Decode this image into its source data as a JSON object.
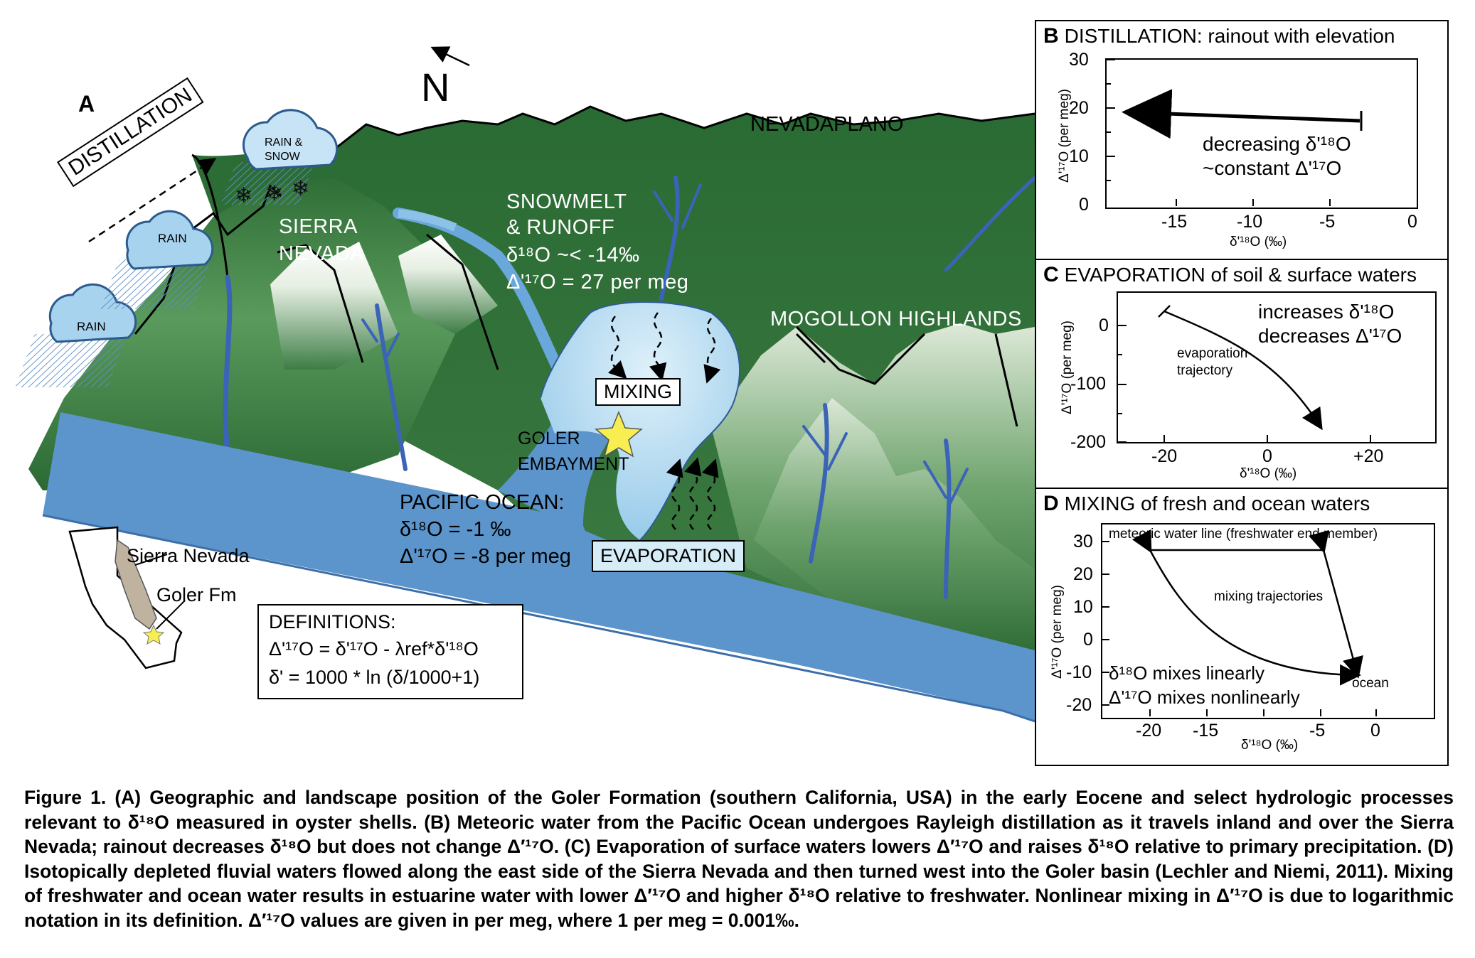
{
  "panel_a": {
    "letter": "A",
    "north": "N",
    "distillation": "DISTILLATION",
    "cloud_rain_1": "RAIN",
    "cloud_rain_2": "RAIN",
    "cloud_rain_snow_1": "RAIN &",
    "cloud_rain_snow_2": "SNOW",
    "nevadaplano": "NEVADAPLANO",
    "sierra_1": "SIERRA",
    "sierra_2": "NEVADA",
    "snowmelt_1": "SNOWMELT",
    "snowmelt_2": "& RUNOFF",
    "snowmelt_3": "δ¹⁸O ~< -14‰",
    "snowmelt_4": "Δ'¹⁷O = 27 per meg",
    "mogollon": "MOGOLLON HIGHLANDS",
    "mixing": "MIXING",
    "goler_1": "GOLER",
    "goler_2": "EMBAYMENT",
    "pacific_1": "PACIFIC OCEAN:",
    "pacific_2": "δ¹⁸O = -1 ‰",
    "pacific_3": "Δ'¹⁷O = -8 per meg",
    "evaporation": "EVAPORATION",
    "inset_sierra": "Sierra Nevada",
    "inset_goler": "Goler Fm",
    "defs_title": "DEFINITIONS:",
    "defs_1": "Δ'¹⁷O = δ'¹⁷O - λref*δ'¹⁸O",
    "defs_2": "δ' = 1000 * ln (δ/1000+1)"
  },
  "panel_b": {
    "letter": "B",
    "title": "DISTILLATION: rainout with elevation",
    "ylabel": "Δ'¹⁷O (per meg)",
    "xlabel": "δ'¹⁸O (‰)",
    "yticks": [
      "30",
      "20",
      "10",
      "0"
    ],
    "xticks": [
      "-15",
      "-10",
      "-5",
      "0"
    ],
    "note_1": "decreasing δ'¹⁸O",
    "note_2": "~constant Δ'¹⁷O"
  },
  "panel_c": {
    "letter": "C",
    "title": "EVAPORATION of soil & surface waters",
    "ylabel": "Δ'¹⁷O (per meg)",
    "xlabel": "δ'¹⁸O (‰)",
    "yticks": [
      "0",
      "-100",
      "-200"
    ],
    "xticks": [
      "-20",
      "0",
      "+20"
    ],
    "note_1": "increases δ'¹⁸O",
    "note_2": "decreases Δ'¹⁷O",
    "traj_1": "evaporation",
    "traj_2": "trajectory"
  },
  "panel_d": {
    "letter": "D",
    "title": "MIXING of fresh and ocean waters",
    "ylabel": "Δ'¹⁷O (per meg)",
    "xlabel": "δ'¹⁸O (‰)",
    "yticks": [
      "30",
      "20",
      "10",
      "0",
      "-10",
      "-20"
    ],
    "xticks": [
      "-20",
      "-15",
      "-5",
      "0"
    ],
    "mwl": "meteoric water line (freshwater end member)",
    "mix": "mixing trajectories",
    "ocean": "ocean",
    "note_1": "δ¹⁸O mixes linearly",
    "note_2": "Δ'¹⁷O mixes nonlinearly"
  },
  "caption": "Figure 1.  (A) Geographic and landscape position of the Goler Formation (southern California, USA) in the early Eocene and select hydrologic processes relevant to δ¹⁸O measured in oyster shells. (B) Meteoric water from the Pacific Ocean undergoes Rayleigh distillation as it travels inland and over the Sierra Nevada; rainout decreases δ¹⁸O but does not change Δ′¹⁷O. (C) Evaporation of surface waters lowers Δ′¹⁷O and raises δ¹⁸O relative to primary precipitation. (D) Isotopically depleted fluvial waters flowed along the east side of the Sierra Nevada and then turned west into the Goler basin (Lechler and Niemi, 2011). Mixing of freshwater and ocean water results in estuarine water with lower Δ′¹⁷O and higher δ¹⁸O relative to freshwater. Nonlinear mixing in Δ′¹⁷O is due to logarithmic notation in its definition. Δ′¹⁷O values are given in per meg, where 1 per meg = 0.001‰.",
  "colors": {
    "ocean": "#5b95cc",
    "embayment": "#b9def1",
    "green_dark": "#26612f",
    "green_light": "#a8c9a0",
    "river": "#3b63b8",
    "cloud": "#a7d3ef",
    "cloud_dark": "#6aaee0"
  }
}
